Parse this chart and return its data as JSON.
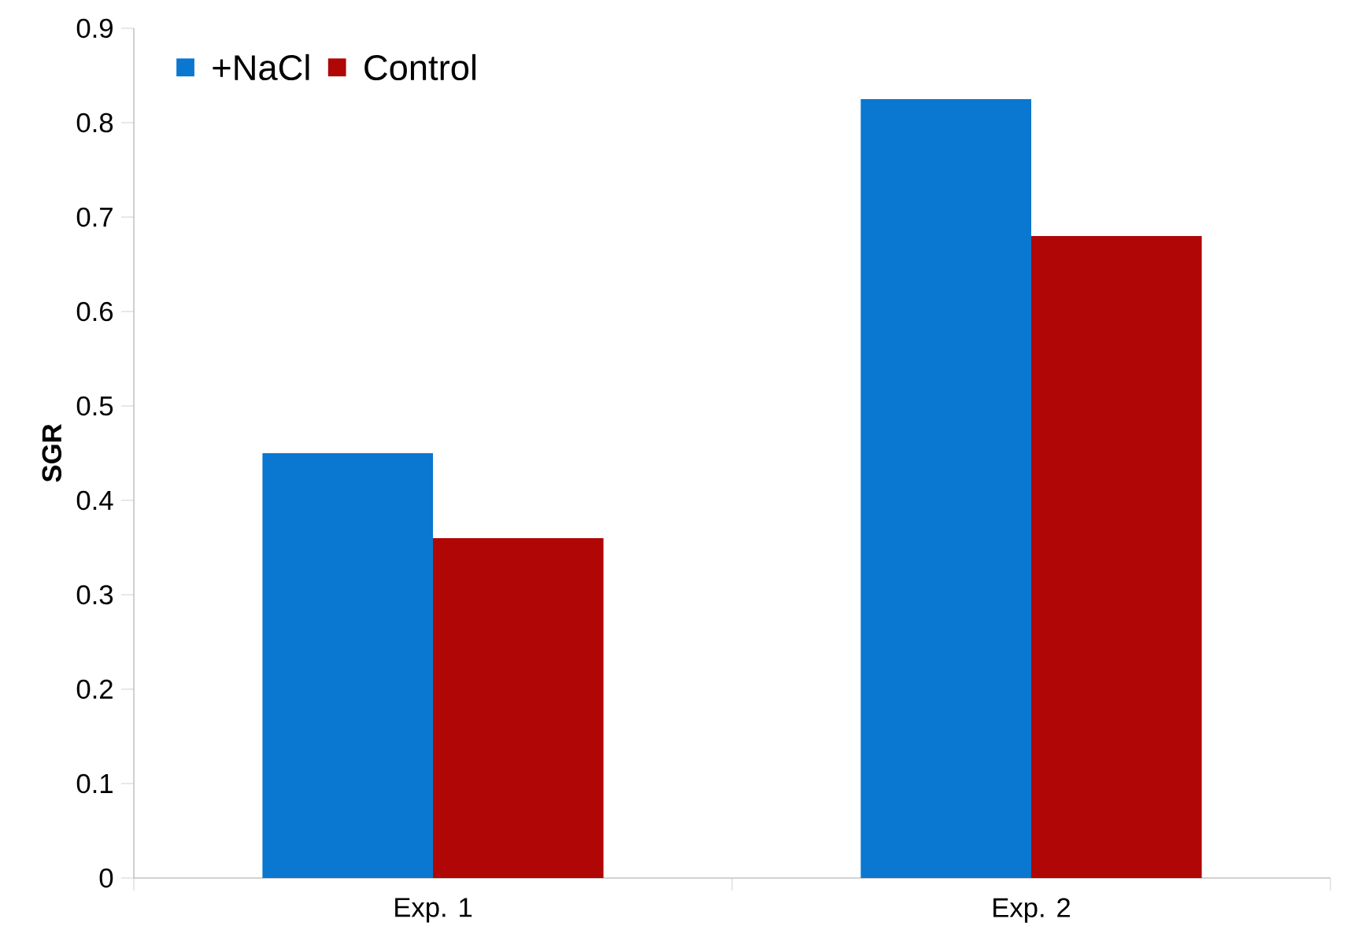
{
  "chart_data": {
    "type": "bar",
    "ylabel": "SGR",
    "categories": [
      "Exp. 1",
      "Exp. 2"
    ],
    "series": [
      {
        "name": "+NaCl",
        "color": "#0a77d0",
        "values": [
          0.45,
          0.825
        ]
      },
      {
        "name": "Control",
        "color": "#b00606",
        "values": [
          0.36,
          0.68
        ]
      }
    ],
    "ylim": [
      0,
      0.9
    ],
    "yticks": [
      0,
      0.1,
      0.2,
      0.3,
      0.4,
      0.5,
      0.6,
      0.7,
      0.8,
      0.9
    ],
    "grid": false,
    "legend": "top left"
  }
}
